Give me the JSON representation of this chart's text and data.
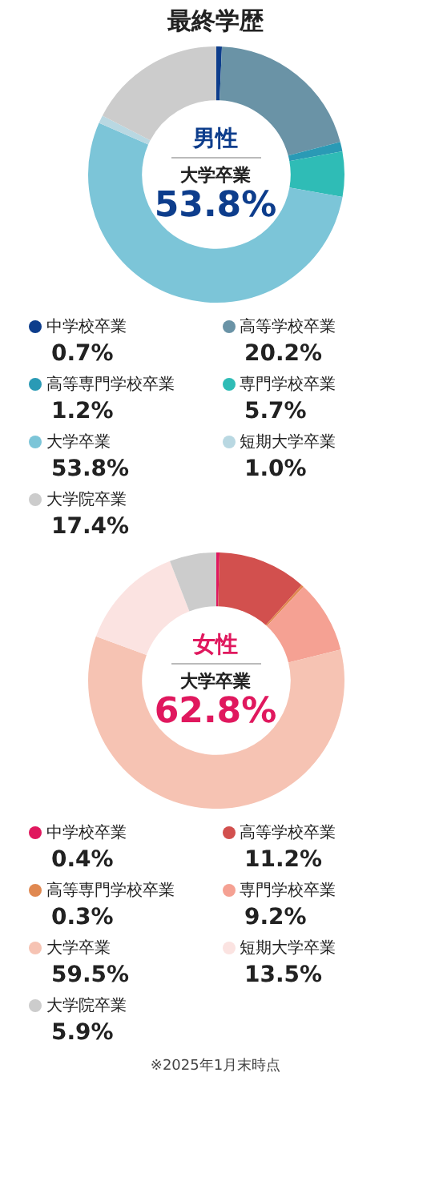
{
  "chart_data": [
    {
      "type": "donut",
      "title": "最終学歴",
      "subtitle": "男性",
      "annotations": [
        "大学卒業",
        "53.8%"
      ],
      "legend": "bottom",
      "categories": [
        "中学校卒業",
        "高等学校卒業",
        "高等専門学校卒業",
        "専門学校卒業",
        "大学卒業",
        "短期大学卒業",
        "大学院卒業"
      ],
      "values": [
        0.7,
        20.2,
        1.2,
        5.7,
        53.8,
        1.0,
        17.4
      ],
      "value_labels": [
        "0.7%",
        "20.2%",
        "1.2%",
        "5.7%",
        "53.8%",
        "1.0%",
        "17.4%"
      ],
      "colors": [
        "#0d3d8c",
        "#6a93a6",
        "#2a9ab5",
        "#2fbcb6",
        "#7cc5d8",
        "#b9d8e2",
        "#cccccc"
      ]
    },
    {
      "type": "donut",
      "subtitle": "女性",
      "annotations": [
        "大学卒業",
        "62.8%",
        "※2025年1月末時点"
      ],
      "legend": "bottom",
      "categories": [
        "中学校卒業",
        "高等学校卒業",
        "高等専門学校卒業",
        "専門学校卒業",
        "大学卒業",
        "短期大学卒業",
        "大学院卒業"
      ],
      "values": [
        0.4,
        11.2,
        0.3,
        9.2,
        59.5,
        13.5,
        5.9
      ],
      "value_labels": [
        "0.4%",
        "11.2%",
        "0.3%",
        "9.2%",
        "59.5%",
        "13.5%",
        "5.9%"
      ],
      "colors": [
        "#e0185e",
        "#d2504e",
        "#e08850",
        "#f5a193",
        "#f6c3b3",
        "#fbe3e1",
        "#cccccc"
      ]
    }
  ]
}
